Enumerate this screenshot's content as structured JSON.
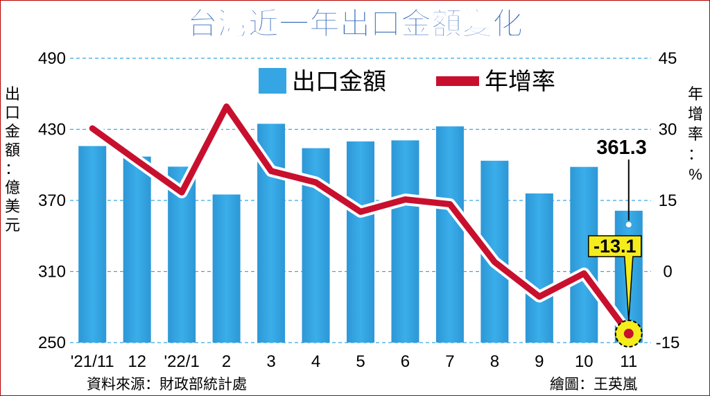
{
  "chart_data": {
    "type": "bar",
    "title": "台灣近一年出口金額變化",
    "categories": [
      "'21/11",
      "12",
      "'22/1",
      "2",
      "3",
      "4",
      "5",
      "6",
      "7",
      "8",
      "9",
      "10",
      "11"
    ],
    "series": [
      {
        "name": "出口金額",
        "type": "bar",
        "axis": "left",
        "values": [
          415.9,
          407.0,
          398.5,
          375.0,
          434.7,
          414.1,
          419.8,
          420.7,
          432.5,
          403.5,
          375.9,
          398.3,
          361.3
        ]
      },
      {
        "name": "年增率",
        "type": "line",
        "axis": "right",
        "values": [
          30.2,
          23.4,
          16.7,
          34.8,
          21.2,
          18.8,
          12.6,
          15.2,
          14.2,
          2.0,
          -5.3,
          -0.4,
          -13.1
        ]
      }
    ],
    "ylabel_left": "出口金額：億美元",
    "ylabel_right": "年增率：%",
    "ylim_left": [
      250,
      490
    ],
    "yticks_left": [
      490,
      430,
      370,
      310,
      250
    ],
    "ylim_right": [
      -15,
      45
    ],
    "yticks_right": [
      45,
      30,
      15,
      0,
      -15
    ],
    "annotations": [
      {
        "text": "361.3",
        "target": "出口金額",
        "index": 12
      },
      {
        "text": "-13.1",
        "target": "年增率",
        "index": 12
      }
    ],
    "grid": "horizontal dashed",
    "legend_position": "top-center"
  },
  "colors": {
    "title": "#2b63b8",
    "bar": "#35a6e3",
    "line": "#c8102e",
    "grid": "#35a6e3",
    "callout_fill": "#f5ec1c",
    "frame": "#b40000"
  },
  "footer": {
    "source": "資料來源：財政部統計處",
    "credit": "繪圖：王英嵐"
  }
}
